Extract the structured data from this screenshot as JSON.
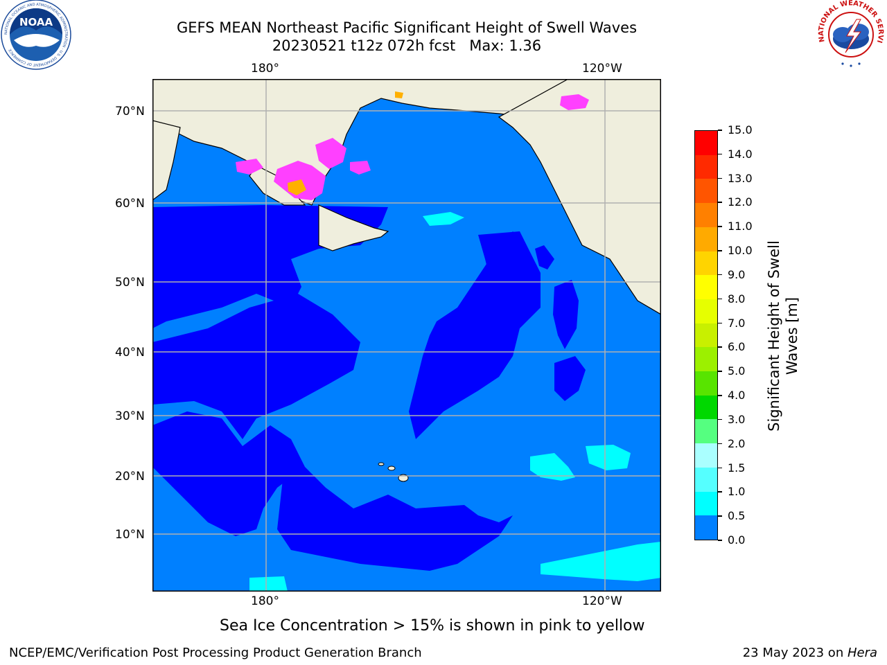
{
  "header": {
    "title_line1": "GEFS MEAN Northeast Pacific Significant Height of Swell Waves",
    "title_line2": "20230521 t12z 072h fcst   Max: 1.36"
  },
  "logos": {
    "noaa_text": "NOAA",
    "noaa_ring": "NATIONAL OCEANIC AND ATMOSPHERIC ADMINISTRATION · U.S. DEPARTMENT OF COMMERCE",
    "nws_ring": "NATIONAL WEATHER SERVICE"
  },
  "map": {
    "lon_top": [
      "180°",
      "120°W"
    ],
    "lon_bottom": [
      "180°",
      "120°W"
    ],
    "lat_left": [
      "70°N",
      "60°N",
      "50°N",
      "40°N",
      "30°N",
      "20°N",
      "10°N"
    ],
    "colors": {
      "land": "#efeedd",
      "sea_0_0.5": "#0000ff",
      "sea_0.5_1.0": "#0080ff",
      "sea_1.0_1.5": "#00ffff",
      "ice": "#ff40ff",
      "grid": "#b0b0b0"
    }
  },
  "colorbar": {
    "label_line1": "Significant Height of Swell",
    "label_line2": "Waves [m]",
    "ticks": [
      "15.0",
      "14.0",
      "13.0",
      "12.0",
      "11.0",
      "10.0",
      "9.0",
      "8.0",
      "7.0",
      "6.0",
      "5.0",
      "4.0",
      "3.0",
      "2.0",
      "1.5",
      "1.0",
      "0.5",
      "0.0"
    ],
    "colors": [
      "#ff0000",
      "#ff2a00",
      "#ff5500",
      "#ff8000",
      "#ffaa00",
      "#ffd400",
      "#ffff00",
      "#e6ff00",
      "#c8f000",
      "#9cf000",
      "#58e400",
      "#00d800",
      "#55ff80",
      "#aaffff",
      "#55ffff",
      "#00ffff",
      "#0080ff",
      "#0000ff"
    ]
  },
  "note": "Sea Ice Concentration > 15% is shown in pink to yellow",
  "footer": {
    "left": "NCEP/EMC/Verification Post Processing Product Generation Branch",
    "right_date": "23 May 2023 on ",
    "right_machine": "Hera"
  }
}
